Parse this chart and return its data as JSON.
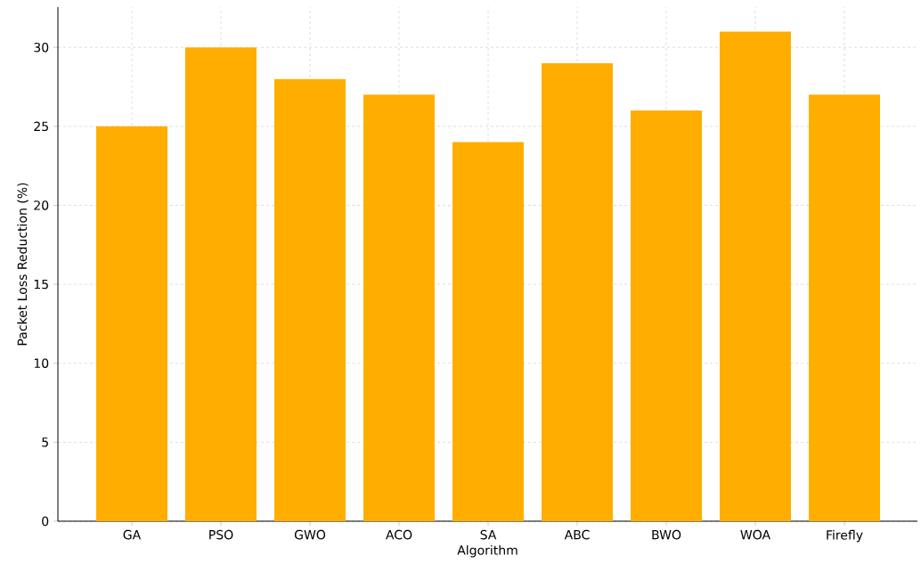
{
  "chart_data": {
    "type": "bar",
    "xlabel": "Algorithm",
    "ylabel": "Packet Loss Reduction (%)",
    "categories": [
      "GA",
      "PSO",
      "GWO",
      "ACO",
      "SA",
      "ABC",
      "BWO",
      "WOA",
      "Firefly"
    ],
    "values": [
      25,
      30,
      28,
      27,
      24,
      29,
      26,
      31,
      27
    ],
    "color": "#ffae00",
    "ylim": [
      0,
      32.55
    ],
    "yticks": [
      0,
      5,
      10,
      15,
      20,
      25,
      30
    ],
    "grid": true
  }
}
